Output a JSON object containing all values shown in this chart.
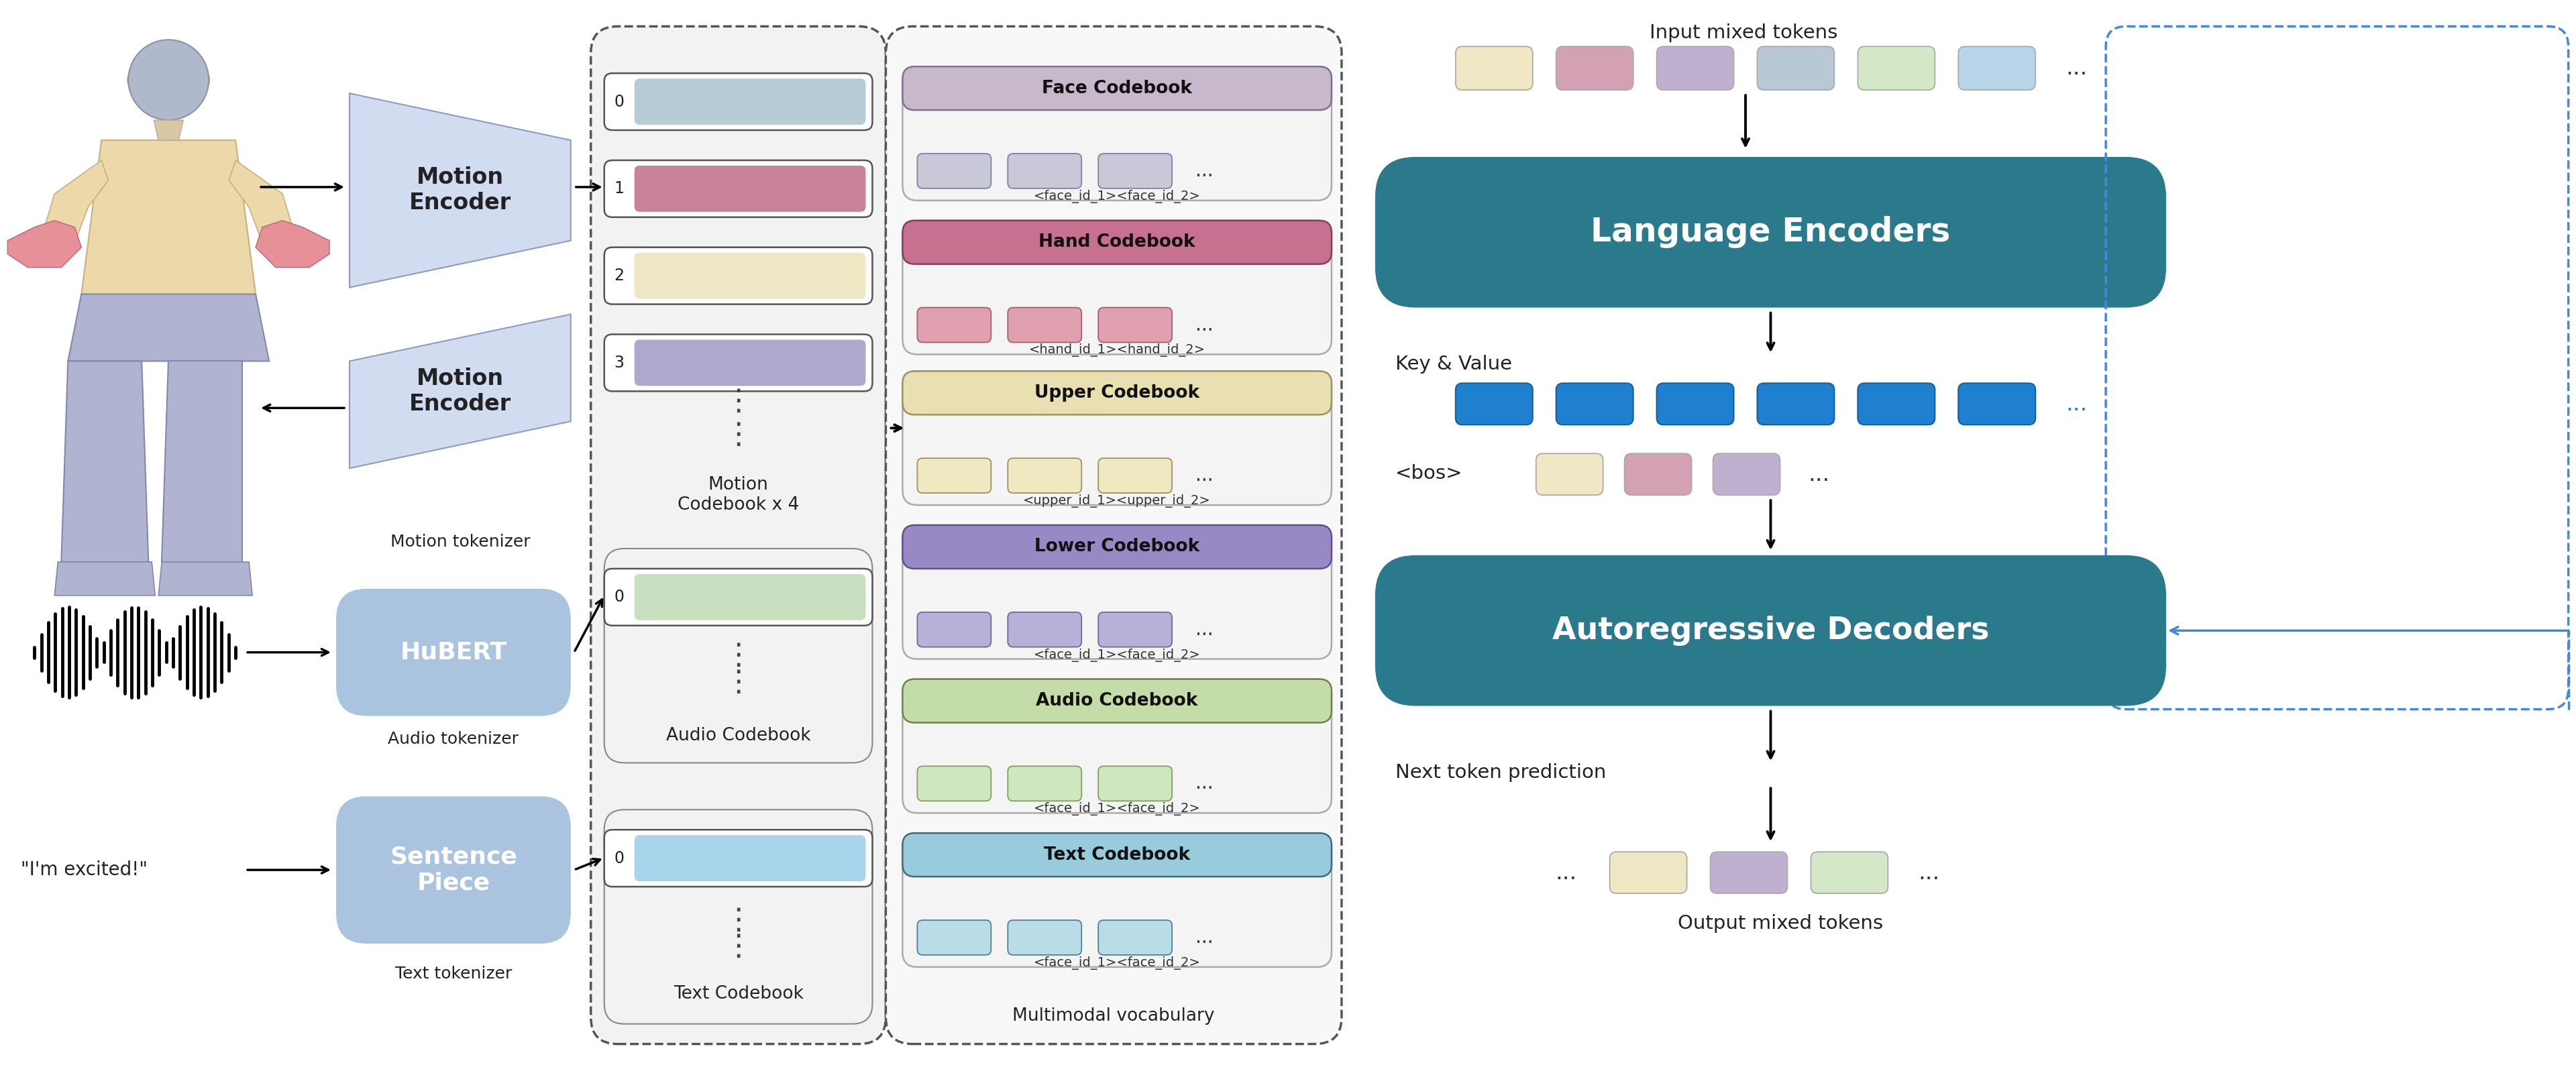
{
  "bg_color": "#ffffff",
  "teal_color": "#2a7a8c",
  "motion_encoder_fill": "#d0dff0",
  "hubert_fill": "#aac4e0",
  "sentence_fill": "#aac4e0",
  "codebook_bg": "#f0f0f0",
  "motion_row_colors": [
    "#b8ccd8",
    "#c8829a",
    "#f0e8c4",
    "#b0a8cc"
  ],
  "audio_row_color": "#c8e0c0",
  "text_row_color": "#a8d4ec",
  "vocab_items": [
    {
      "name": "Face Codebook",
      "hdr": "#c8b8cc",
      "hdr_edge": "#807090",
      "tok": "#c8c8d8",
      "tok_edge": "#8080a0",
      "caption": "<face_id_1><face_id_2>"
    },
    {
      "name": "Hand Codebook",
      "hdr": "#c87090",
      "hdr_edge": "#804060",
      "tok": "#e0a0b0",
      "tok_edge": "#a06070",
      "caption": "<hand_id_1><hand_id_2>"
    },
    {
      "name": "Upper Codebook",
      "hdr": "#e8e0b0",
      "hdr_edge": "#a09060",
      "tok": "#f0e8c0",
      "tok_edge": "#a09060",
      "caption": "<upper_id_1><upper_id_2>"
    },
    {
      "name": "Lower Codebook",
      "hdr": "#9888c4",
      "hdr_edge": "#605090",
      "tok": "#b8b0d8",
      "tok_edge": "#706898",
      "caption": "<face_id_1><face_id_2>"
    },
    {
      "name": "Audio Codebook",
      "hdr": "#c4dca8",
      "hdr_edge": "#708050",
      "tok": "#d0e8c0",
      "tok_edge": "#80a060",
      "caption": "<face_id_1><face_id_2>"
    },
    {
      "name": "Text Codebook",
      "hdr": "#98ccdc",
      "hdr_edge": "#406880",
      "tok": "#b8dce8",
      "tok_edge": "#508098",
      "caption": "<face_id_1><face_id_2>"
    }
  ],
  "input_token_colors": [
    "#f0e8c4",
    "#d4a0b4",
    "#c0b0d0",
    "#b8c8d4",
    "#d4e8c8",
    "#b8d4e8"
  ],
  "kv_token_color": "#2080d0",
  "kv_token_edge": "#1060a0",
  "bos_token_colors": [
    "#f0e8c4",
    "#d4a0b4",
    "#c0b0d0"
  ],
  "output_token_colors": [
    "#f0e8c4",
    "#c0b0d0",
    "#d4e8c8"
  ]
}
